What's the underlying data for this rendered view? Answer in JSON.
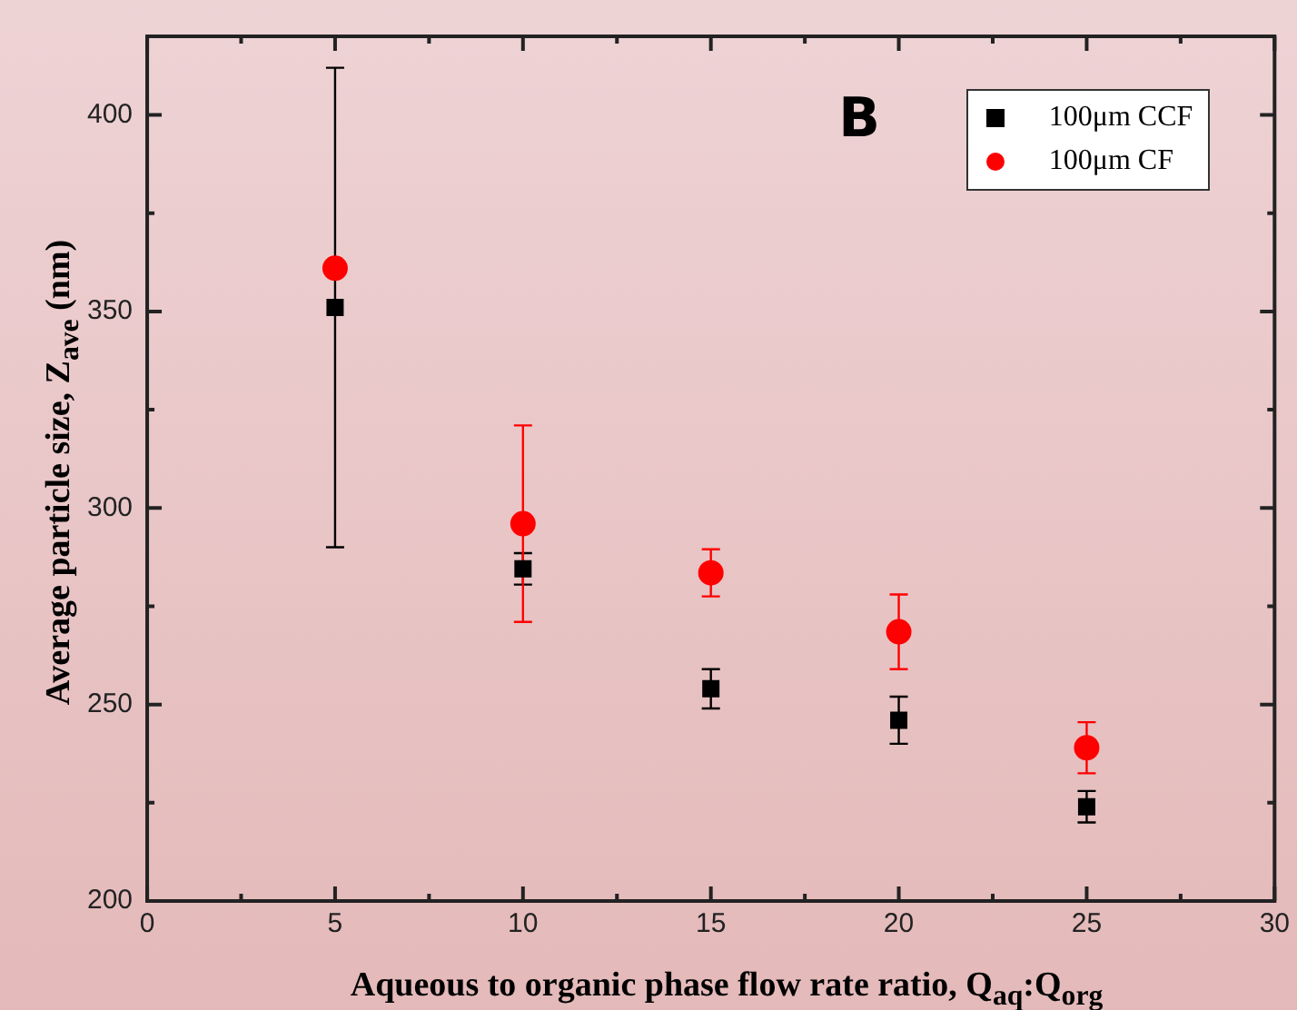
{
  "chart_data": {
    "type": "scatter",
    "xlabel": "Aqueous to organic phase flow rate ratio, Q$_{aq}$:Q$_{org}$",
    "ylabel": "Average particle size, Z$_{ave}$ (nm)",
    "annotations": [
      "B"
    ],
    "x": [
      5,
      10,
      15,
      20,
      25
    ],
    "series": [
      {
        "name": "100μm CCF",
        "color": "#000000",
        "marker": "square",
        "values": [
          351,
          284.5,
          254,
          246,
          224
        ],
        "errors": [
          61,
          4,
          5,
          6,
          4
        ]
      },
      {
        "name": "100μm CF",
        "color": "#ff0000",
        "marker": "circle",
        "values": [
          361,
          296,
          283.5,
          268.5,
          239
        ],
        "errors": [
          null,
          25,
          6,
          9.5,
          6.5
        ]
      }
    ],
    "xlim": [
      0,
      30
    ],
    "xticks": [
      0,
      {
        "value": 2.5,
        "label": null
      },
      5,
      {
        "value": 7.5,
        "label": null
      },
      10,
      {
        "value": 12.5,
        "label": null
      },
      15,
      {
        "value": 17.5,
        "label": null
      },
      20,
      {
        "value": 22.5,
        "label": null
      },
      25,
      {
        "value": 27.5,
        "label": null
      },
      30
    ],
    "ylim": [
      200,
      420
    ],
    "yticks": [
      200,
      {
        "value": 225,
        "label": null
      },
      250,
      {
        "value": 275,
        "label": null
      },
      300,
      {
        "value": 325,
        "label": null
      },
      350,
      {
        "value": 375,
        "label": null
      },
      400
    ],
    "legend": "top right"
  }
}
